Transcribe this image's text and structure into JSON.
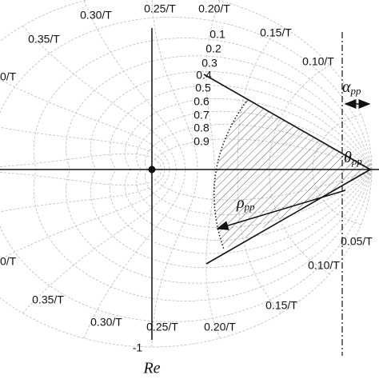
{
  "frequency_labels_top": [
    "0.25/T",
    "0.20/T",
    "0.30/T",
    "0.35/T",
    "0/T",
    "0.15/T",
    "0.10/T"
  ],
  "frequency_labels_bottom": [
    "0.05/T",
    "0.10/T",
    "0.15/T",
    "0.20/T",
    "0.25/T",
    "0.30/T",
    "0.35/T",
    "0/T"
  ],
  "damping_labels": [
    "0.1",
    "0.2",
    "0.3",
    "0.4",
    "0.5",
    "0.6",
    "0.7",
    "0.8",
    "0.9"
  ],
  "axis": {
    "minus_one": "-1",
    "real": "Re"
  },
  "symbols": {
    "alpha": {
      "symbol": "α",
      "subscript": "pp"
    },
    "theta": {
      "symbol": "θ",
      "subscript": "pp"
    },
    "rho": {
      "symbol": "ρ",
      "subscript": "pp"
    }
  }
}
